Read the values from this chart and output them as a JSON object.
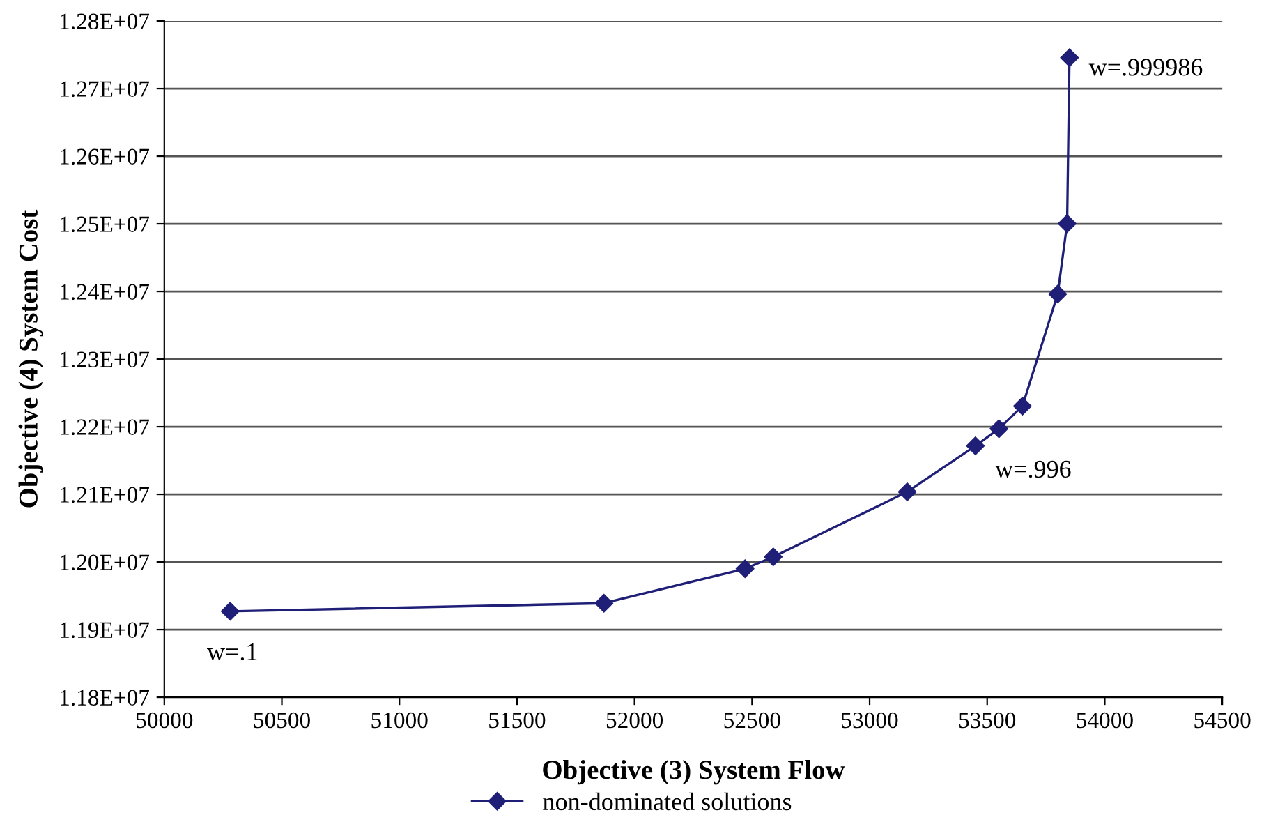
{
  "chart_data": {
    "type": "line",
    "xlabel": "Objective (3) System Flow",
    "ylabel": "Objective (4) System Cost",
    "x": [
      50280,
      51870,
      52470,
      52590,
      53160,
      53450,
      53550,
      53650,
      53800,
      53840,
      53850
    ],
    "series": [
      {
        "name": "non-dominated solutions",
        "color": "#1f1f78",
        "values": [
          11927000,
          11939000,
          11990000,
          12007500,
          12103700,
          12171600,
          12197000,
          12230600,
          12396200,
          12500400,
          12745600
        ]
      }
    ],
    "marker": "diamond",
    "line_style": "solid",
    "grid": "y",
    "legend": "bottom",
    "xlim": [
      50000,
      54500
    ],
    "xticks": [
      50000,
      50500,
      51000,
      51500,
      52000,
      52500,
      53000,
      53500,
      54000,
      54500
    ],
    "ylim": [
      11800000,
      12800000
    ],
    "yticks": [
      {
        "value": 11800000,
        "label": "1.18E+07"
      },
      {
        "value": 11900000,
        "label": "1.19E+07"
      },
      {
        "value": 12000000,
        "label": "1.20E+07"
      },
      {
        "value": 12100000,
        "label": "1.21E+07"
      },
      {
        "value": 12200000,
        "label": "1.22E+07"
      },
      {
        "value": 12300000,
        "label": "1.23E+07"
      },
      {
        "value": 12400000,
        "label": "1.24E+07"
      },
      {
        "value": 12500000,
        "label": "1.25E+07"
      },
      {
        "value": 12600000,
        "label": "1.26E+07"
      },
      {
        "value": 12700000,
        "label": "1.27E+07"
      },
      {
        "value": 12800000,
        "label": "1.28E+07"
      }
    ],
    "annotations": [
      {
        "text": "w=.1",
        "x": 50280,
        "y": 11927000
      },
      {
        "text": "w=.996",
        "x": 53550,
        "y": 12197000
      },
      {
        "text": "w=.999986",
        "x": 53850,
        "y": 12745600
      }
    ]
  }
}
